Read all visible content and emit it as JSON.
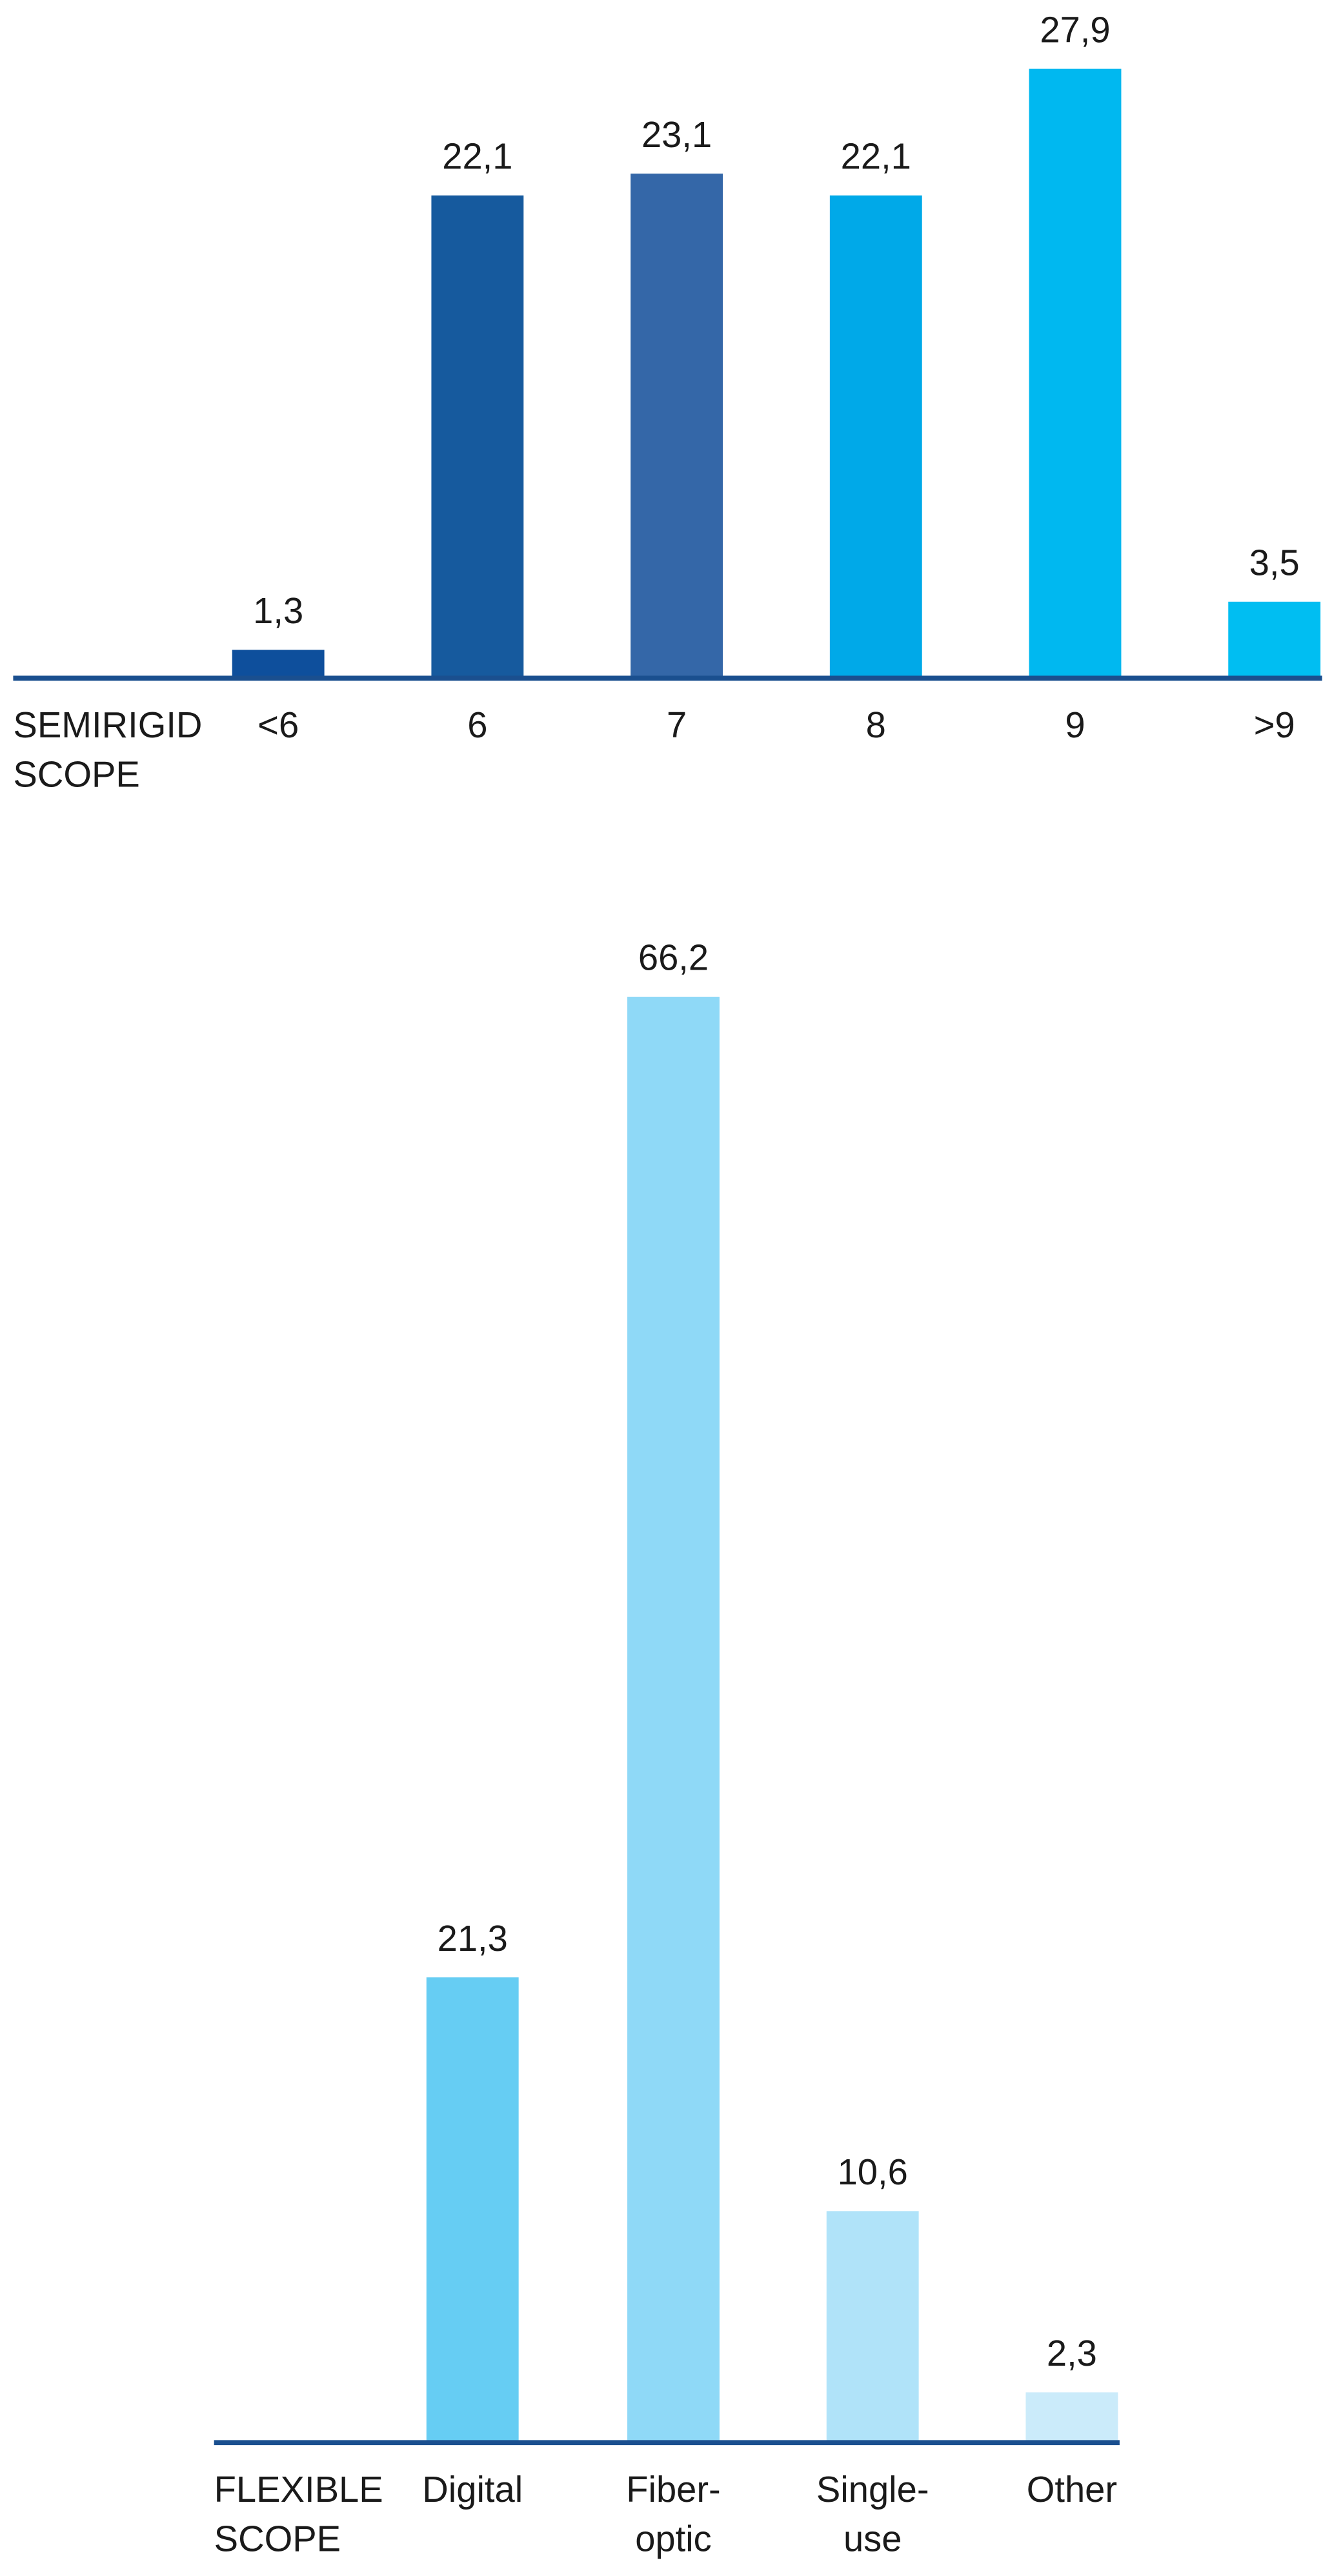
{
  "chart_data": [
    {
      "type": "bar",
      "axis_label": "SEMIRIGID SCOPE",
      "categories": [
        "<6",
        "6",
        "7",
        "8",
        "9",
        ">9"
      ],
      "values": [
        1.3,
        22.1,
        23.1,
        22.1,
        27.9,
        3.5
      ],
      "value_labels": [
        "1,3",
        "22,1",
        "23,1",
        "22,1",
        "27,9",
        "3,5"
      ],
      "colors": [
        "#0e4f9c",
        "#165a9e",
        "#3467a8",
        "#00a9e8",
        "#00b8f0",
        "#00bef2"
      ]
    },
    {
      "type": "bar",
      "axis_label": "FLEXIBLE SCOPE",
      "categories": [
        "Digital",
        "Fiber-optic",
        "Single-use",
        "Other"
      ],
      "values": [
        21.3,
        66.2,
        10.6,
        2.3
      ],
      "value_labels": [
        "21,3",
        "66,2",
        "10,6",
        "2,3"
      ],
      "colors": [
        "#66cdf3",
        "#8fd9f7",
        "#b0e3f9",
        "#cbebfa"
      ]
    }
  ]
}
